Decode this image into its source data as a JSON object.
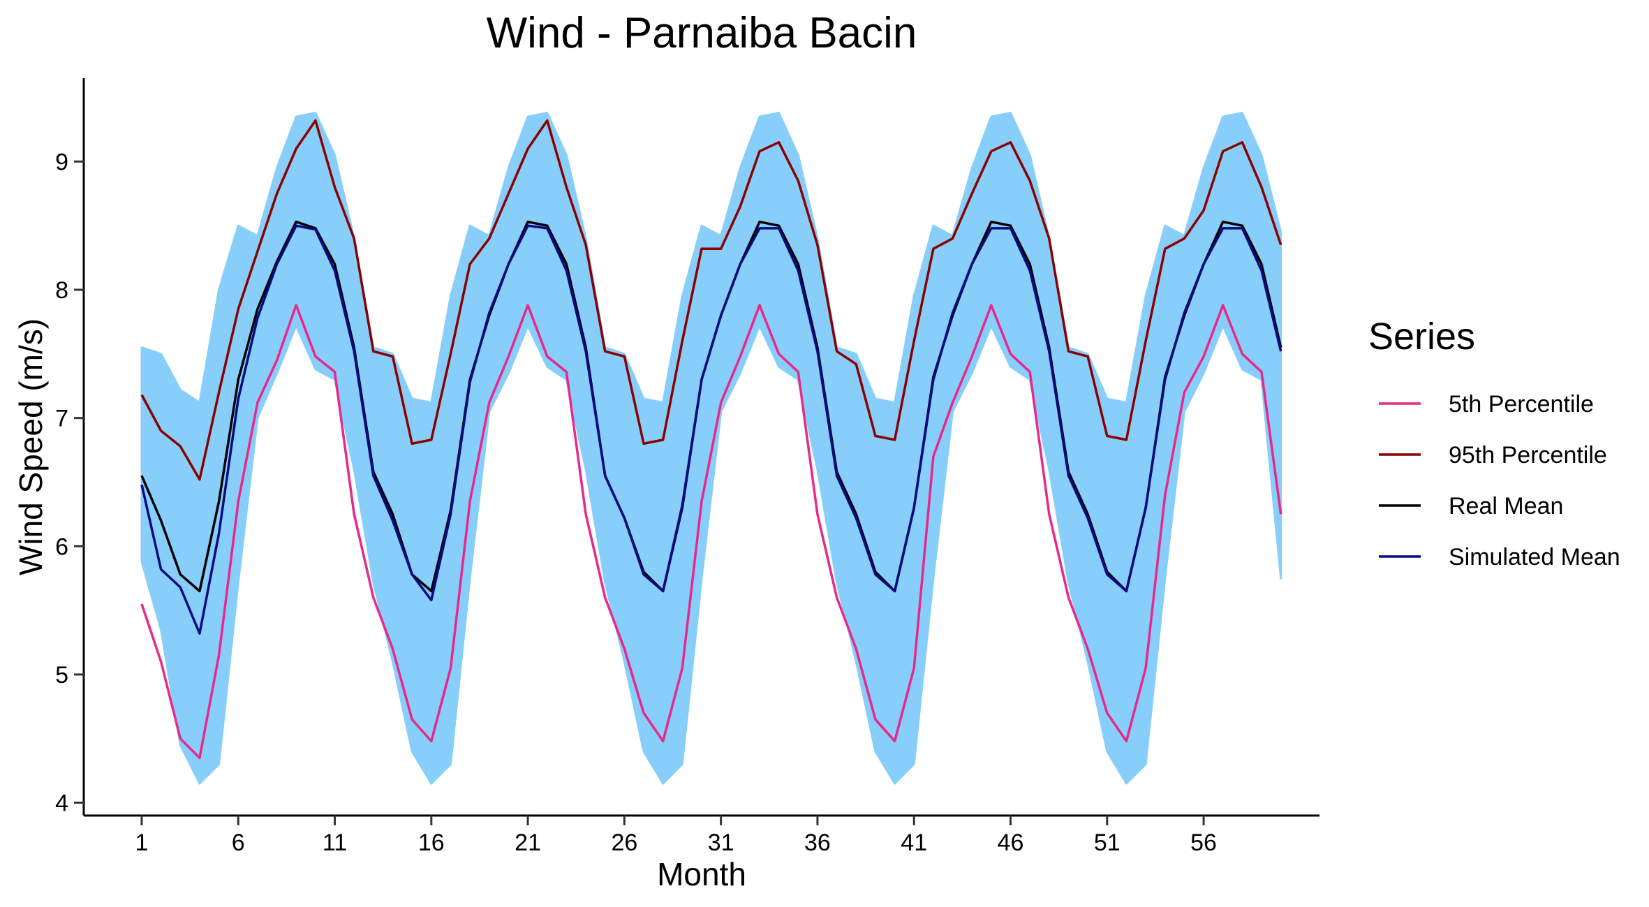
{
  "chart_data": {
    "type": "line",
    "title": "Wind - Parnaiba Bacin",
    "xlabel": "Month",
    "ylabel": "Wind Speed (m/s)",
    "xlim": [
      -2,
      62
    ],
    "ylim": [
      3.9,
      9.65
    ],
    "x_ticks": [
      1,
      6,
      11,
      16,
      21,
      26,
      31,
      36,
      41,
      46,
      51,
      56
    ],
    "y_ticks": [
      4,
      5,
      6,
      7,
      8,
      9
    ],
    "grid": false,
    "legend": {
      "title": "Series",
      "placement": "right"
    },
    "x": [
      1,
      2,
      3,
      4,
      5,
      6,
      7,
      8,
      9,
      10,
      11,
      12,
      13,
      14,
      15,
      16,
      17,
      18,
      19,
      20,
      21,
      22,
      23,
      24,
      25,
      26,
      27,
      28,
      29,
      30,
      31,
      32,
      33,
      34,
      35,
      36,
      37,
      38,
      39,
      40,
      41,
      42,
      43,
      44,
      45,
      46,
      47,
      48,
      49,
      50,
      51,
      52,
      53,
      54,
      55,
      56,
      57,
      58,
      59,
      60
    ],
    "series": [
      {
        "name": "5th Percentile",
        "color": "#E7298A",
        "values": [
          5.55,
          5.1,
          4.5,
          4.35,
          5.15,
          6.35,
          7.12,
          7.45,
          7.88,
          7.48,
          7.36,
          6.25,
          5.6,
          5.2,
          4.65,
          4.48,
          5.05,
          6.35,
          7.12,
          7.48,
          7.88,
          7.48,
          7.36,
          6.25,
          5.6,
          5.2,
          4.7,
          4.48,
          5.05,
          6.35,
          7.12,
          7.48,
          7.88,
          7.5,
          7.36,
          6.25,
          5.6,
          5.2,
          4.65,
          4.48,
          5.05,
          6.7,
          7.12,
          7.48,
          7.88,
          7.5,
          7.36,
          6.25,
          5.6,
          5.2,
          4.7,
          4.48,
          5.05,
          6.4,
          7.2,
          7.48,
          7.88,
          7.5,
          7.36,
          6.25
        ]
      },
      {
        "name": "95th Percentile",
        "color": "#8B0000",
        "values": [
          7.18,
          6.9,
          6.78,
          6.52,
          7.2,
          7.85,
          8.3,
          8.75,
          9.1,
          9.32,
          8.8,
          8.4,
          7.52,
          7.48,
          6.8,
          6.83,
          7.5,
          8.2,
          8.4,
          8.75,
          9.1,
          9.32,
          8.8,
          8.35,
          7.52,
          7.48,
          6.8,
          6.83,
          7.6,
          8.32,
          8.32,
          8.65,
          9.08,
          9.15,
          8.85,
          8.35,
          7.52,
          7.42,
          6.86,
          6.83,
          7.6,
          8.32,
          8.4,
          8.75,
          9.08,
          9.15,
          8.85,
          8.4,
          7.52,
          7.48,
          6.86,
          6.83,
          7.6,
          8.32,
          8.4,
          8.62,
          9.08,
          9.15,
          8.8,
          8.35
        ]
      },
      {
        "name": "Real Mean",
        "color": "#000000",
        "values": [
          6.55,
          6.2,
          5.78,
          5.65,
          6.35,
          7.3,
          7.85,
          8.22,
          8.53,
          8.48,
          8.2,
          7.55,
          6.58,
          6.25,
          5.78,
          5.65,
          6.28,
          7.3,
          7.8,
          8.2,
          8.53,
          8.5,
          8.2,
          7.55,
          6.55,
          6.22,
          5.8,
          5.65,
          6.3,
          7.3,
          7.8,
          8.2,
          8.53,
          8.5,
          8.2,
          7.55,
          6.58,
          6.25,
          5.8,
          5.65,
          6.3,
          7.32,
          7.8,
          8.2,
          8.53,
          8.5,
          8.2,
          7.55,
          6.58,
          6.25,
          5.8,
          5.65,
          6.3,
          7.32,
          7.8,
          8.2,
          8.53,
          8.5,
          8.2,
          7.55
        ]
      },
      {
        "name": "Simulated Mean",
        "color": "#0A0A80",
        "values": [
          6.48,
          5.82,
          5.68,
          5.32,
          6.1,
          7.15,
          7.78,
          8.2,
          8.5,
          8.47,
          8.15,
          7.52,
          6.55,
          6.2,
          5.78,
          5.58,
          6.25,
          7.28,
          7.82,
          8.2,
          8.5,
          8.48,
          8.15,
          7.52,
          6.55,
          6.22,
          5.78,
          5.65,
          6.32,
          7.3,
          7.8,
          8.2,
          8.48,
          8.48,
          8.15,
          7.52,
          6.55,
          6.22,
          5.78,
          5.65,
          6.3,
          7.3,
          7.82,
          8.2,
          8.48,
          8.48,
          8.15,
          7.52,
          6.55,
          6.22,
          5.78,
          5.65,
          6.3,
          7.3,
          7.82,
          8.2,
          8.48,
          8.48,
          8.15,
          7.52
        ]
      }
    ],
    "band": {
      "color": "#87CEFA",
      "lower": [
        5.88,
        5.35,
        4.45,
        4.15,
        4.3,
        5.72,
        7.0,
        7.35,
        7.72,
        7.38,
        7.3,
        6.6,
        5.72,
        5.1,
        4.4,
        4.15,
        4.3,
        5.75,
        7.05,
        7.35,
        7.72,
        7.4,
        7.3,
        6.6,
        5.72,
        5.1,
        4.4,
        4.15,
        4.3,
        5.75,
        7.05,
        7.35,
        7.72,
        7.4,
        7.3,
        6.6,
        5.72,
        5.1,
        4.4,
        4.15,
        4.3,
        5.75,
        7.05,
        7.35,
        7.72,
        7.4,
        7.3,
        6.6,
        5.72,
        5.1,
        4.4,
        4.15,
        4.3,
        5.75,
        7.05,
        7.35,
        7.72,
        7.38,
        7.3,
        5.75
      ],
      "upper": [
        7.55,
        7.5,
        7.22,
        7.12,
        8.0,
        8.5,
        8.42,
        8.95,
        9.35,
        9.38,
        9.05,
        8.4,
        7.55,
        7.5,
        7.15,
        7.12,
        7.95,
        8.5,
        8.42,
        8.95,
        9.35,
        9.38,
        9.05,
        8.4,
        7.55,
        7.5,
        7.15,
        7.12,
        7.95,
        8.5,
        8.42,
        8.95,
        9.35,
        9.38,
        9.05,
        8.4,
        7.55,
        7.5,
        7.15,
        7.12,
        7.95,
        8.5,
        8.42,
        8.95,
        9.35,
        9.38,
        9.05,
        8.4,
        7.55,
        7.5,
        7.15,
        7.12,
        7.95,
        8.5,
        8.42,
        8.95,
        9.35,
        9.38,
        9.05,
        8.45
      ]
    }
  }
}
